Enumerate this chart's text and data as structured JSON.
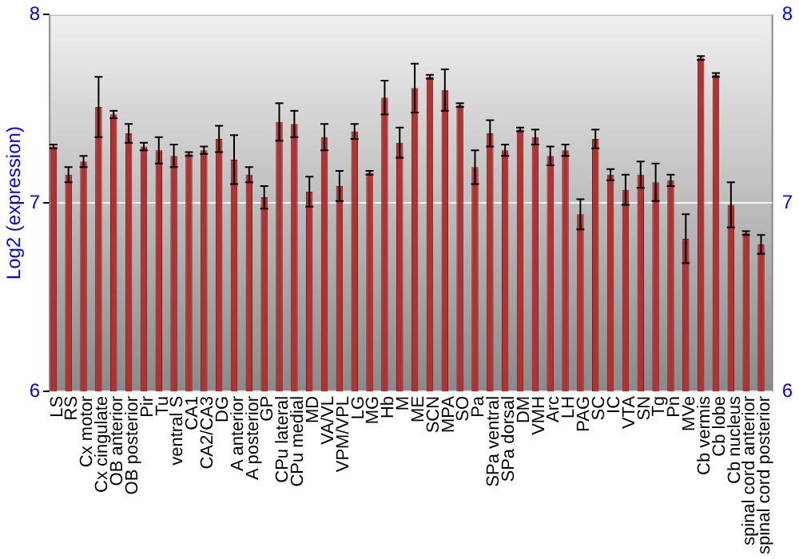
{
  "chart_data": {
    "type": "bar",
    "ylabel": "Log2 (expression)",
    "categories": [
      "LS",
      "RS",
      "Cx motor",
      "Cx cingulate",
      "OB anterior",
      "OB posterior",
      "Pir",
      "Tu",
      "ventral S",
      "CA1",
      "CA2/CA3",
      "DG",
      "A anterior",
      "A posterior",
      "GP",
      "CPu lateral",
      "CPu medial",
      "MD",
      "VA/VL",
      "VPM/VPL",
      "LG",
      "MG",
      "Hb",
      "M",
      "ME",
      "SCN",
      "MPA",
      "SO",
      "Pa",
      "SPa ventral",
      "SPa dorsal",
      "DM",
      "VMH",
      "Arc",
      "LH",
      "PAG",
      "SC",
      "IC",
      "VTA",
      "SN",
      "Tg",
      "Pn",
      "MVe",
      "Cb vermis",
      "Cb lobe",
      "Cb nucleus",
      "spinal cord anterior",
      "spinal cord posterior"
    ],
    "values": [
      7.3,
      7.15,
      7.22,
      7.51,
      7.47,
      7.37,
      7.3,
      7.28,
      7.25,
      7.26,
      7.28,
      7.34,
      7.23,
      7.15,
      7.03,
      7.43,
      7.42,
      7.06,
      7.35,
      7.09,
      7.38,
      7.16,
      7.56,
      7.32,
      7.61,
      7.67,
      7.6,
      7.52,
      7.19,
      7.37,
      7.28,
      7.39,
      7.35,
      7.25,
      7.28,
      6.94,
      7.34,
      7.15,
      7.07,
      7.15,
      7.11,
      7.12,
      6.81,
      7.77,
      7.68,
      6.99,
      6.84,
      6.78
    ],
    "errors": [
      0.01,
      0.04,
      0.03,
      0.16,
      0.02,
      0.05,
      0.02,
      0.07,
      0.06,
      0.01,
      0.02,
      0.07,
      0.13,
      0.04,
      0.06,
      0.1,
      0.07,
      0.08,
      0.07,
      0.08,
      0.04,
      0.01,
      0.09,
      0.08,
      0.13,
      0.01,
      0.11,
      0.01,
      0.09,
      0.07,
      0.03,
      0.01,
      0.04,
      0.05,
      0.03,
      0.08,
      0.05,
      0.03,
      0.08,
      0.07,
      0.1,
      0.03,
      0.13,
      0.01,
      0.01,
      0.12,
      0.01,
      0.05
    ],
    "color": "#b03232",
    "ylim": [
      6,
      8
    ],
    "yticks": [
      6,
      7,
      8
    ],
    "y2lim": [
      6,
      8
    ],
    "y2ticks": [
      6,
      7,
      8
    ],
    "grid": "y",
    "legend": false
  }
}
